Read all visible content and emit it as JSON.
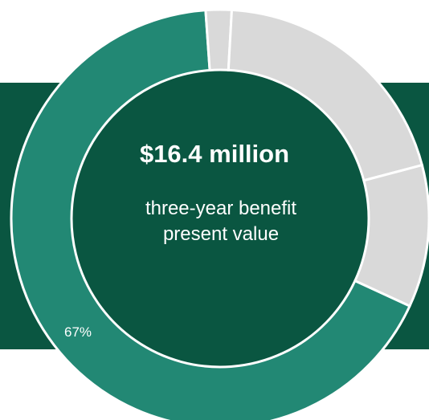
{
  "colors": {
    "background": "#ffffff",
    "band": "#0a5641",
    "accent": "#228874",
    "muted": "#d9d9d9",
    "separator": "#ffffff",
    "text": "#ffffff"
  },
  "chart_data": {
    "type": "pie",
    "variant": "donut",
    "title": "",
    "slices": [
      {
        "value": 67,
        "color": "#228874"
      },
      {
        "value": 2,
        "color": "#d9d9d9"
      },
      {
        "value": 20,
        "color": "#d9d9d9"
      },
      {
        "value": 11,
        "color": "#d9d9d9"
      }
    ],
    "data_labels": [
      {
        "slice": 0,
        "text": "67%"
      }
    ],
    "center_headline": "$16.4 million",
    "center_subtext_line1": "three-year benefit",
    "center_subtext_line2": "present value",
    "legend": "none"
  }
}
